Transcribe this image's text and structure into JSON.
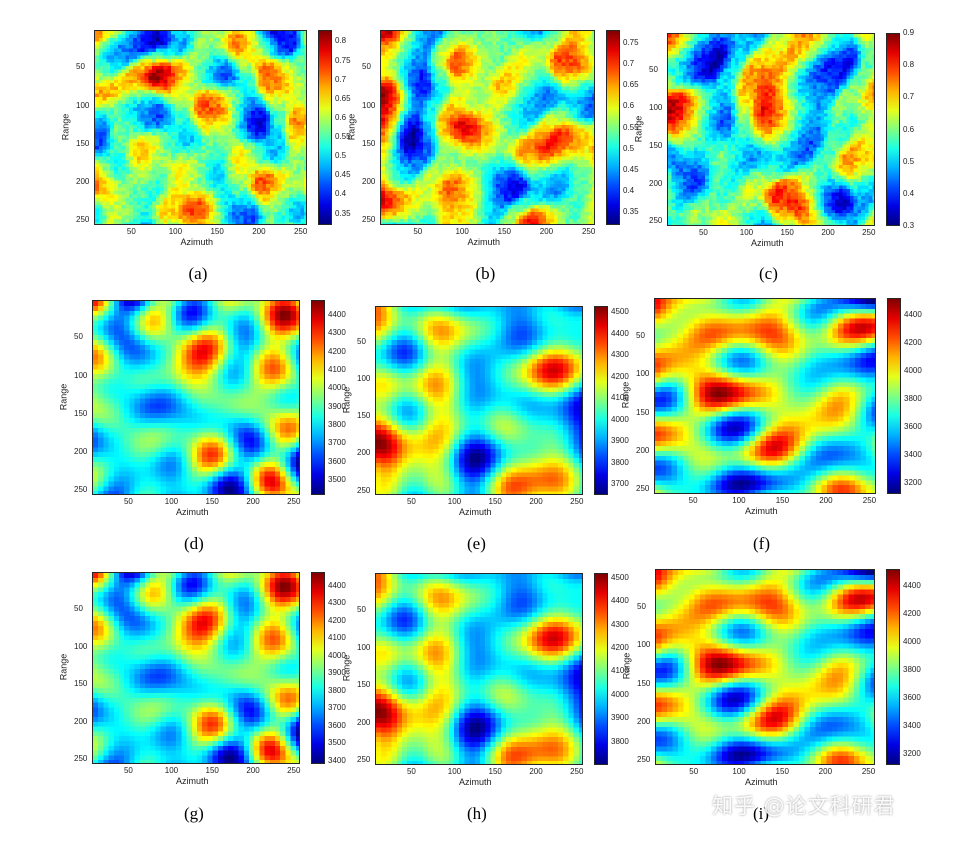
{
  "chart_data": [
    {
      "type": "heatmap",
      "caption": "(a)",
      "xlabel": "Azimuth",
      "ylabel": "Range",
      "xlim": [
        1,
        256
      ],
      "ylim": [
        1,
        256
      ],
      "xticks": [
        "50",
        "100",
        "150",
        "200",
        "250"
      ],
      "yticks": [
        "50",
        "100",
        "150",
        "200",
        "250"
      ],
      "colorbar": {
        "ticks": [
          "0.35",
          "0.4",
          "0.45",
          "0.5",
          "0.55",
          "0.6",
          "0.65",
          "0.7",
          "0.75",
          "0.8"
        ],
        "range": [
          0.32,
          0.83
        ]
      },
      "style": "texture",
      "seed": 11
    },
    {
      "type": "heatmap",
      "caption": "(b)",
      "xlabel": "Azimuth",
      "ylabel": "Range",
      "xlim": [
        1,
        256
      ],
      "ylim": [
        1,
        256
      ],
      "xticks": [
        "50",
        "100",
        "150",
        "200",
        "250"
      ],
      "yticks": [
        "50",
        "100",
        "150",
        "200",
        "250"
      ],
      "colorbar": {
        "ticks": [
          "0.35",
          "0.4",
          "0.45",
          "0.5",
          "0.55",
          "0.6",
          "0.65",
          "0.7",
          "0.75"
        ],
        "range": [
          0.32,
          0.78
        ]
      },
      "style": "texture",
      "seed": 23
    },
    {
      "type": "heatmap",
      "caption": "(c)",
      "xlabel": "Azimuth",
      "ylabel": "Range",
      "xlim": [
        1,
        256
      ],
      "ylim": [
        1,
        256
      ],
      "xticks": [
        "50",
        "100",
        "150",
        "200",
        "250"
      ],
      "yticks": [
        "50",
        "100",
        "150",
        "200",
        "250"
      ],
      "colorbar": {
        "ticks": [
          "0.3",
          "0.4",
          "0.5",
          "0.6",
          "0.7",
          "0.8",
          "0.9"
        ],
        "range": [
          0.3,
          0.9
        ]
      },
      "style": "texture",
      "seed": 37
    },
    {
      "type": "heatmap",
      "caption": "(d)",
      "xlabel": "Azimuth",
      "ylabel": "Range",
      "xlim": [
        1,
        256
      ],
      "ylim": [
        1,
        256
      ],
      "xticks": [
        "50",
        "100",
        "150",
        "200",
        "250"
      ],
      "yticks": [
        "50",
        "100",
        "150",
        "200",
        "250"
      ],
      "colorbar": {
        "ticks": [
          "3500",
          "3600",
          "3700",
          "3800",
          "3900",
          "4000",
          "4100",
          "4200",
          "4300",
          "4400"
        ],
        "range": [
          3420,
          4480
        ]
      },
      "style": "terrain",
      "seed": 101
    },
    {
      "type": "heatmap",
      "caption": "(e)",
      "xlabel": "Azimuth",
      "ylabel": "Range",
      "xlim": [
        1,
        256
      ],
      "ylim": [
        1,
        256
      ],
      "xticks": [
        "50",
        "100",
        "150",
        "200",
        "250"
      ],
      "yticks": [
        "50",
        "100",
        "150",
        "200",
        "250"
      ],
      "colorbar": {
        "ticks": [
          "3700",
          "3800",
          "3900",
          "4000",
          "4100",
          "4200",
          "4300",
          "4400",
          "4500"
        ],
        "range": [
          3650,
          4530
        ]
      },
      "style": "terrain",
      "seed": 202
    },
    {
      "type": "heatmap",
      "caption": "(f)",
      "xlabel": "Azimuth",
      "ylabel": "Range",
      "xlim": [
        1,
        256
      ],
      "ylim": [
        1,
        256
      ],
      "xticks": [
        "50",
        "100",
        "150",
        "200",
        "250"
      ],
      "yticks": [
        "50",
        "100",
        "150",
        "200",
        "250"
      ],
      "colorbar": {
        "ticks": [
          "3200",
          "3400",
          "3600",
          "3800",
          "4000",
          "4200",
          "4400"
        ],
        "range": [
          3120,
          4520
        ]
      },
      "style": "terrain",
      "seed": 303
    },
    {
      "type": "heatmap",
      "caption": "(g)",
      "xlabel": "Azimuth",
      "ylabel": "Range",
      "xlim": [
        1,
        256
      ],
      "ylim": [
        1,
        256
      ],
      "xticks": [
        "50",
        "100",
        "150",
        "200",
        "250"
      ],
      "yticks": [
        "50",
        "100",
        "150",
        "200",
        "250"
      ],
      "colorbar": {
        "ticks": [
          "3400",
          "3500",
          "3600",
          "3700",
          "3800",
          "3900",
          "4000",
          "4100",
          "4200",
          "4300",
          "4400"
        ],
        "range": [
          3380,
          4480
        ]
      },
      "style": "terrain",
      "seed": 101
    },
    {
      "type": "heatmap",
      "caption": "(h)",
      "xlabel": "Azimuth",
      "ylabel": "Range",
      "xlim": [
        1,
        256
      ],
      "ylim": [
        1,
        256
      ],
      "xticks": [
        "50",
        "100",
        "150",
        "200",
        "250"
      ],
      "yticks": [
        "50",
        "100",
        "150",
        "200",
        "250"
      ],
      "colorbar": {
        "ticks": [
          "3800",
          "3900",
          "4000",
          "4100",
          "4200",
          "4300",
          "4400",
          "4500"
        ],
        "range": [
          3700,
          4520
        ]
      },
      "style": "terrain",
      "seed": 202
    },
    {
      "type": "heatmap",
      "caption": "(i)",
      "xlabel": "Azimuth",
      "ylabel": "Range",
      "xlim": [
        1,
        256
      ],
      "ylim": [
        1,
        256
      ],
      "xticks": [
        "50",
        "100",
        "150",
        "200",
        "250"
      ],
      "yticks": [
        "50",
        "100",
        "150",
        "200",
        "250"
      ],
      "colorbar": {
        "ticks": [
          "3200",
          "3400",
          "3600",
          "3800",
          "4000",
          "4200",
          "4400"
        ],
        "range": [
          3120,
          4520
        ]
      },
      "style": "terrain",
      "seed": 303
    }
  ],
  "watermark": "知乎 @论文科研君",
  "colormap": "jet"
}
